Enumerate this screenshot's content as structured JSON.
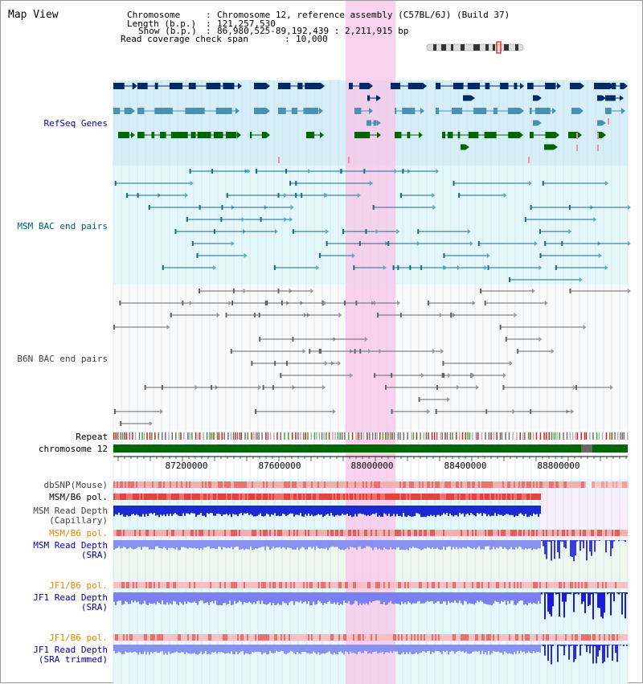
{
  "title": "Map View",
  "info": {
    "chromosome_key": "Chromosome",
    "chromosome_value": "Chromosome 12, reference assembly (C57BL/6J) (Build 37)",
    "length_key": "Length (b.p.)",
    "length_value": "121,257,530",
    "show_key": "Show (b.p.)",
    "show_value": "86,980,525-89,192,439 : 2,211,915 bp",
    "span_key": "Read coverage check span",
    "span_value": "10,000"
  },
  "tracks": {
    "refseq": "RefSeq Genes",
    "msm_bac": "MSM BAC end pairs",
    "b6n_bac": "B6N BAC end pairs",
    "repeat": "Repeat",
    "chromosome": "chromosome 12",
    "dbsnp": "dbSNP(Mouse)",
    "msm_pol_1": "MSM/B6 pol.",
    "msm_depth_cap_1": "MSM Read Depth",
    "msm_depth_cap_2": "(Capillary)",
    "msm_pol_2": "MSM/B6 pol.",
    "msm_depth_sra_1": "MSM Read Depth",
    "msm_depth_sra_2": "(SRA)",
    "jf1_pol_1": "JF1/B6 pol.",
    "jf1_depth_sra_1": "JF1 Read Depth",
    "jf1_depth_sra_2": "(SRA)",
    "jf1_pol_2": "JF1/B6 pol.",
    "jf1_depth_trim_1": "JF1 Read Depth",
    "jf1_depth_trim_2": "(SRA trimmed)"
  },
  "axis": {
    "ticks": [
      "87200000",
      "87600000",
      "88000000",
      "88400000",
      "88800000"
    ]
  },
  "colors": {
    "refseq_label": "#0000aa",
    "msm_label": "#006070",
    "b6n_label": "#444444",
    "orange_label": "#e08800",
    "navy": "#002a66",
    "teal": "#4a90b0",
    "green": "#006600",
    "highlight": "#f8c8ea"
  }
}
